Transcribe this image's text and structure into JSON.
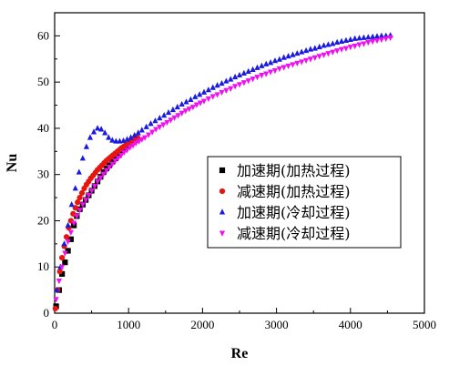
{
  "chart_data": {
    "type": "scatter",
    "xlabel": "Re",
    "ylabel": "Nu",
    "xlim": [
      0,
      5000
    ],
    "ylim": [
      0,
      65
    ],
    "xticks": [
      0,
      1000,
      2000,
      3000,
      4000,
      5000
    ],
    "yticks": [
      0,
      10,
      20,
      30,
      40,
      50,
      60
    ],
    "grid": false,
    "legend_position": "center-right",
    "series": [
      {
        "name": "加速期(加热过程)",
        "marker": "square",
        "color": "#000000",
        "x": [
          20,
          60,
          100,
          140,
          180,
          220,
          260,
          300,
          340,
          380,
          420,
          460,
          500,
          540,
          580,
          620,
          660,
          700,
          740,
          780,
          820,
          860,
          900,
          940,
          980,
          1020,
          1060,
          1100
        ],
        "y": [
          1.5,
          5,
          8.5,
          11,
          13.5,
          16,
          19,
          21,
          22.5,
          23.5,
          24.5,
          25.5,
          26.5,
          27.5,
          28.5,
          29.5,
          30.5,
          31.3,
          32,
          32.8,
          33.5,
          34.2,
          35,
          35.7,
          36.3,
          37,
          37.5,
          38
        ]
      },
      {
        "name": "减速期(加热过程)",
        "marker": "circle",
        "color": "#e8140f",
        "x": [
          10,
          40,
          70,
          100,
          130,
          160,
          190,
          220,
          250,
          280,
          310,
          340,
          370,
          400,
          430,
          460,
          490,
          520,
          550,
          580,
          610,
          640,
          670,
          700,
          730,
          760,
          790,
          820,
          850,
          880,
          910,
          940,
          970,
          1000,
          1030,
          1060,
          1090,
          1120
        ],
        "y": [
          1,
          5,
          9,
          12,
          14.5,
          16.5,
          18.5,
          20,
          21.5,
          22.8,
          24,
          25,
          26,
          27,
          27.8,
          28.5,
          29.2,
          29.8,
          30.4,
          31,
          31.5,
          32,
          32.5,
          33,
          33.4,
          33.8,
          34.2,
          34.6,
          35,
          35.4,
          35.8,
          36.1,
          36.5,
          36.8,
          37.1,
          37.4,
          37.7,
          38
        ]
      },
      {
        "name": "加速期(冷却过程)",
        "marker": "triangle-up",
        "color": "#1a1ae0",
        "x": [
          30,
          80,
          130,
          180,
          230,
          280,
          330,
          380,
          430,
          480,
          530,
          580,
          630,
          680,
          730,
          780,
          830,
          880,
          930,
          980,
          1030,
          1080,
          1130,
          1180,
          1240,
          1300,
          1360,
          1420,
          1480,
          1540,
          1600,
          1660,
          1720,
          1780,
          1840,
          1900,
          1960,
          2020,
          2080,
          2140,
          2200,
          2260,
          2320,
          2380,
          2440,
          2500,
          2560,
          2620,
          2680,
          2740,
          2800,
          2860,
          2920,
          2980,
          3040,
          3100,
          3160,
          3220,
          3280,
          3340,
          3400,
          3460,
          3520,
          3580,
          3640,
          3700,
          3760,
          3820,
          3880,
          3940,
          4000,
          4060,
          4120,
          4180,
          4240,
          4300,
          4360,
          4420,
          4480,
          4540
        ],
        "y": [
          5,
          10,
          15,
          19,
          23.5,
          27,
          30.5,
          33.5,
          36,
          38,
          39.2,
          40,
          39.8,
          39,
          38,
          37.4,
          37.2,
          37.2,
          37.3,
          37.6,
          38,
          38.5,
          39,
          39.6,
          40.3,
          41,
          41.6,
          42.2,
          42.8,
          43.4,
          44,
          44.6,
          45.2,
          45.7,
          46.2,
          46.8,
          47.3,
          47.8,
          48.3,
          48.8,
          49.3,
          49.7,
          50.2,
          50.6,
          51.1,
          51.5,
          51.9,
          52.3,
          52.7,
          53.1,
          53.5,
          53.9,
          54.2,
          54.6,
          54.9,
          55.3,
          55.6,
          55.9,
          56.2,
          56.5,
          56.8,
          57.1,
          57.3,
          57.6,
          57.9,
          58.1,
          58.3,
          58.6,
          58.8,
          59,
          59.2,
          59.4,
          59.5,
          59.6,
          59.7,
          59.8,
          59.9,
          60,
          60,
          60.1
        ]
      },
      {
        "name": "减速期(冷却过程)",
        "marker": "triangle-down",
        "color": "#ee10ee",
        "x": [
          20,
          60,
          100,
          140,
          180,
          220,
          260,
          300,
          340,
          380,
          420,
          460,
          500,
          540,
          580,
          620,
          660,
          700,
          740,
          780,
          820,
          860,
          900,
          940,
          980,
          1020,
          1060,
          1100,
          1140,
          1180,
          1220,
          1270,
          1320,
          1370,
          1420,
          1470,
          1520,
          1570,
          1620,
          1670,
          1720,
          1770,
          1820,
          1870,
          1920,
          1970,
          2020,
          2080,
          2140,
          2200,
          2260,
          2320,
          2380,
          2440,
          2500,
          2560,
          2620,
          2680,
          2740,
          2800,
          2860,
          2920,
          2980,
          3040,
          3100,
          3160,
          3220,
          3280,
          3340,
          3400,
          3460,
          3520,
          3580,
          3640,
          3700,
          3760,
          3820,
          3880,
          3940,
          4000,
          4060,
          4120,
          4180,
          4240,
          4300,
          4360,
          4420,
          4480,
          4540
        ],
        "y": [
          3,
          7,
          10,
          13,
          15.5,
          17.5,
          19.5,
          21,
          22.3,
          23.5,
          24.5,
          25.5,
          26.5,
          27.5,
          28.5,
          29.3,
          30.1,
          30.9,
          31.6,
          32.3,
          33,
          33.6,
          34.2,
          34.8,
          35.3,
          35.9,
          36.3,
          36.8,
          37.2,
          37.6,
          38,
          38.6,
          39.2,
          39.8,
          40.3,
          40.8,
          41.3,
          41.8,
          42.3,
          42.8,
          43.3,
          43.8,
          44.2,
          44.6,
          45.1,
          45.5,
          45.9,
          46.4,
          46.9,
          47.3,
          47.8,
          48.2,
          48.6,
          49.1,
          49.5,
          49.9,
          50.3,
          50.7,
          51.1,
          51.5,
          51.8,
          52.2,
          52.5,
          52.9,
          53.2,
          53.5,
          53.8,
          54.1,
          54.4,
          54.7,
          55,
          55.3,
          55.6,
          55.9,
          56.2,
          56.5,
          56.8,
          57.1,
          57.3,
          57.6,
          57.8,
          58.1,
          58.3,
          58.6,
          58.8,
          59,
          59.2,
          59.4,
          59.6
        ]
      }
    ]
  }
}
